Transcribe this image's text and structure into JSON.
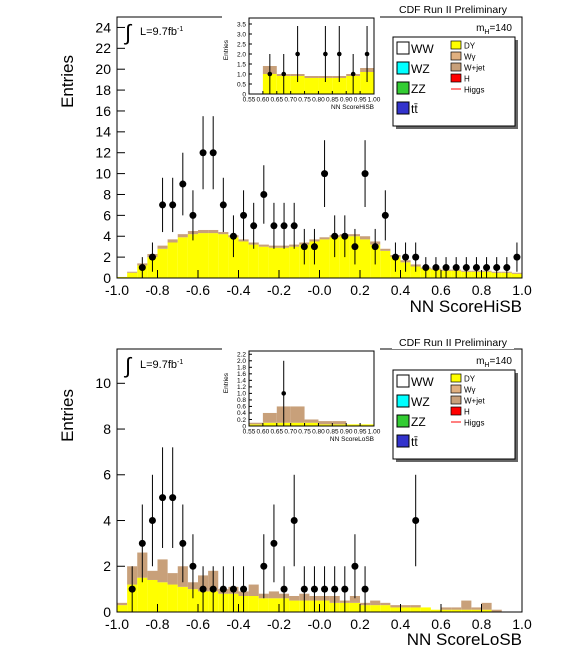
{
  "chart_data": [
    {
      "type": "histogram",
      "title": "CDF Run II Preliminary",
      "x_label": "NN ScoreHiSB",
      "y_label": "Entries",
      "integral": "∫",
      "lumi": {
        "text": "L=9.7fb",
        "superscript": "-1"
      },
      "mass_label": {
        "symbol": "m",
        "subscript": "H",
        "value": "=140"
      },
      "xlim": [
        -1,
        1
      ],
      "ylim": [
        0,
        25
      ],
      "xticks": [
        {
          "value": -1,
          "label": "-1.0"
        },
        -0.8,
        -0.6,
        -0.4,
        -0.2,
        {
          "value": 0,
          "label": "-0.0"
        },
        0.2,
        0.4,
        0.6,
        0.8,
        {
          "value": 1,
          "label": "1.0"
        }
      ],
      "yticks": [
        0,
        2,
        4,
        6,
        8,
        10,
        12,
        14,
        16,
        18,
        20,
        22,
        24
      ],
      "bins": [
        -1,
        -0.95,
        -0.9,
        -0.85,
        -0.8,
        -0.75,
        -0.7,
        -0.65,
        -0.6,
        -0.55,
        -0.5,
        -0.45,
        -0.4,
        -0.35,
        -0.3,
        -0.25,
        -0.2,
        -0.15,
        -0.1,
        -0.05,
        0,
        0.05,
        0.1,
        0.15,
        0.2,
        0.25,
        0.3,
        0.35,
        0.4,
        0.45,
        0.5,
        0.55,
        0.6,
        0.65,
        0.7,
        0.75,
        0.8,
        0.85,
        0.9,
        0.95,
        1
      ],
      "series": [
        {
          "name": "WW",
          "color": "#ffffff"
        },
        {
          "name": "WZ",
          "color": "#00ffff"
        },
        {
          "name": "ZZ",
          "color": "#33cc33"
        },
        {
          "name": "tt̄",
          "color": "#3333cc"
        },
        {
          "name": "DY",
          "color": "#ffff00",
          "values": [
            0.1,
            0.5,
            1.2,
            2.0,
            2.8,
            3.4,
            3.9,
            4.2,
            4.3,
            4.3,
            4.2,
            3.9,
            3.5,
            3.2,
            3.0,
            2.9,
            2.9,
            3.0,
            3.2,
            3.5,
            3.7,
            3.9,
            4.0,
            4.0,
            3.7,
            3.2,
            2.6,
            2.0,
            1.5,
            1.1,
            0.9,
            0.8,
            0.7,
            0.7,
            0.6,
            0.6,
            0.6,
            0.5,
            0.5,
            0.4
          ]
        },
        {
          "name": "Wγ",
          "color": "#e0b080"
        },
        {
          "name": "W+jet",
          "color": "#c8a07a",
          "values": [
            0,
            0.1,
            0.2,
            0.3,
            0.3,
            0.3,
            0.3,
            0.3,
            0.3,
            0.3,
            0.2,
            0.2,
            0.2,
            0.2,
            0.2,
            0.2,
            0.2,
            0.2,
            0.2,
            0.2,
            0.2,
            0.2,
            0.2,
            0.2,
            0.3,
            0.3,
            0.2,
            0.2,
            0.2,
            0.2,
            0.1,
            0.1,
            0.1,
            0.1,
            0.1,
            0.1,
            0.1,
            0.1,
            0.1,
            0.1
          ]
        },
        {
          "name": "H",
          "color": "#ff0000"
        },
        {
          "name": "Higgs",
          "color": "#ff0000",
          "style": "line"
        }
      ],
      "data": {
        "x": [
          -0.875,
          -0.825,
          -0.775,
          -0.725,
          -0.675,
          -0.625,
          -0.575,
          -0.525,
          -0.475,
          -0.425,
          -0.375,
          -0.325,
          -0.275,
          -0.225,
          -0.175,
          -0.125,
          -0.075,
          -0.025,
          0.025,
          0.075,
          0.125,
          0.175,
          0.225,
          0.275,
          0.325,
          0.375,
          0.425,
          0.475,
          0.525,
          0.575,
          0.625,
          0.675,
          0.725,
          0.775,
          0.825,
          0.875,
          0.925,
          0.975
        ],
        "values": [
          1,
          2,
          7,
          7,
          9,
          6,
          12,
          12,
          7,
          4,
          6,
          5,
          8,
          5,
          5,
          5,
          3,
          3,
          10,
          4,
          4,
          3,
          10,
          3,
          6,
          2,
          2,
          2,
          1,
          1,
          1,
          1,
          1,
          1,
          1,
          1,
          1,
          2
        ],
        "errors": [
          1,
          1.4,
          2.6,
          2.6,
          3,
          2.4,
          3.5,
          3.5,
          2.6,
          2,
          2.4,
          2.2,
          2.8,
          2.2,
          2.2,
          2.2,
          1.7,
          1.7,
          3.2,
          2,
          2,
          1.7,
          3.2,
          1.7,
          2.4,
          1.4,
          1.4,
          1.4,
          1,
          1,
          1,
          1,
          1,
          1,
          1,
          1,
          1,
          1.4
        ]
      },
      "inset": {
        "x_label": "NN ScoreHiSB",
        "y_label": "Entries",
        "xlim": [
          0.55,
          1
        ],
        "ylim": [
          0,
          3.8
        ],
        "xticks": [
          0.55,
          {
            "value": 0.6,
            "label": "0.60"
          },
          0.65,
          {
            "value": 0.7,
            "label": "0.70"
          },
          0.75,
          {
            "value": 0.8,
            "label": "0.80"
          },
          0.85,
          {
            "value": 0.9,
            "label": "0.90"
          },
          0.95,
          {
            "value": 1,
            "label": "1.00"
          }
        ],
        "yticks": [
          0,
          0.5,
          {
            "value": 1,
            "label": "1.0"
          },
          1.5,
          {
            "value": 2,
            "label": "2.0"
          },
          2.5,
          {
            "value": 3,
            "label": "3.0"
          },
          3.5
        ],
        "bins": [
          0.55,
          0.6,
          0.65,
          0.7,
          0.75,
          0.8,
          0.85,
          0.9,
          0.95,
          1
        ],
        "series": [
          {
            "color": "#ffff00",
            "values": [
              0,
              1.0,
              0.9,
              0.9,
              0.8,
              0.8,
              0.8,
              0.9,
              1.1
            ]
          },
          {
            "color": "#c8a07a",
            "values": [
              0,
              0.4,
              0.1,
              0.1,
              0.1,
              0.1,
              0.1,
              0.1,
              0.2
            ]
          }
        ],
        "data": {
          "x": [
            0.625,
            0.675,
            0.725,
            0.825,
            0.875,
            0.925,
            0.975
          ],
          "values": [
            1,
            1,
            2,
            2,
            2,
            1,
            2
          ],
          "errors": [
            1,
            1,
            1.4,
            1.4,
            1.4,
            1,
            1.4
          ]
        }
      }
    },
    {
      "type": "histogram",
      "title": "CDF Run II Preliminary",
      "x_label": "NN ScoreLoSB",
      "y_label": "Entries",
      "integral": "∫",
      "lumi": {
        "text": "L=9.7fb",
        "superscript": "-1"
      },
      "mass_label": {
        "symbol": "m",
        "subscript": "H",
        "value": "=140"
      },
      "xlim": [
        -1,
        1
      ],
      "ylim": [
        0,
        11.5
      ],
      "xticks": [
        {
          "value": -1,
          "label": "-1.0"
        },
        -0.8,
        -0.6,
        -0.4,
        -0.2,
        {
          "value": 0,
          "label": "-0.0"
        },
        0.2,
        0.4,
        0.6,
        0.8,
        {
          "value": 1,
          "label": "1.0"
        }
      ],
      "yticks": [
        0,
        2,
        4,
        6,
        8,
        10
      ],
      "bins": [
        -1,
        -0.95,
        -0.9,
        -0.85,
        -0.8,
        -0.75,
        -0.7,
        -0.65,
        -0.6,
        -0.55,
        -0.5,
        -0.45,
        -0.4,
        -0.35,
        -0.3,
        -0.25,
        -0.2,
        -0.15,
        -0.1,
        -0.05,
        0,
        0.05,
        0.1,
        0.15,
        0.2,
        0.25,
        0.3,
        0.35,
        0.4,
        0.45,
        0.5,
        0.55,
        0.6,
        0.65,
        0.7,
        0.75,
        0.8,
        0.85,
        0.9,
        0.95,
        1
      ],
      "series": [
        {
          "name": "WW",
          "color": "#ffffff"
        },
        {
          "name": "WZ",
          "color": "#00ffff"
        },
        {
          "name": "ZZ",
          "color": "#33cc33"
        },
        {
          "name": "tt̄",
          "color": "#3333cc"
        },
        {
          "name": "DY",
          "color": "#ffff00",
          "values": [
            0.3,
            1.2,
            1.5,
            1.4,
            1.3,
            1.2,
            1.1,
            1.0,
            0.9,
            0.9,
            0.8,
            0.8,
            0.7,
            0.7,
            0.6,
            0.6,
            0.6,
            0.5,
            0.5,
            0.5,
            0.5,
            0.4,
            0.4,
            0.4,
            0.3,
            0.3,
            0.3,
            0.2,
            0.2,
            0.2,
            0.2,
            0.1,
            0.1,
            0.1,
            0.1,
            0.1,
            0.1,
            0,
            0,
            0
          ]
        },
        {
          "name": "Wγ",
          "color": "#e0b080"
        },
        {
          "name": "W+jet",
          "color": "#c8a07a",
          "values": [
            0.1,
            0.8,
            1.1,
            0.4,
            1.0,
            0.5,
            0.9,
            0.3,
            0.7,
            0.9,
            0.2,
            0.3,
            0.2,
            0.5,
            0.2,
            0.3,
            0.2,
            0.2,
            0.3,
            0.2,
            0.2,
            0.3,
            0.1,
            0.3,
            0.1,
            0.2,
            0.1,
            0.1,
            0.1,
            0.1,
            0,
            0,
            0.1,
            0.1,
            0.4,
            0.1,
            0.3,
            0.1,
            0,
            0
          ]
        },
        {
          "name": "H",
          "color": "#ff0000"
        },
        {
          "name": "Higgs",
          "color": "#ff0000",
          "style": "line"
        }
      ],
      "data": {
        "x": [
          -0.925,
          -0.875,
          -0.825,
          -0.775,
          -0.725,
          -0.675,
          -0.625,
          -0.575,
          -0.525,
          -0.475,
          -0.425,
          -0.375,
          -0.275,
          -0.225,
          -0.175,
          -0.125,
          -0.075,
          -0.025,
          0.025,
          0.075,
          0.125,
          0.175,
          0.225,
          0.475
        ],
        "values": [
          1,
          3,
          4,
          5,
          5,
          3,
          2,
          1,
          1,
          1,
          1,
          1,
          2,
          3,
          1,
          4,
          1,
          1,
          1,
          1,
          1,
          2,
          1,
          4
        ],
        "errors": [
          1,
          1.7,
          2,
          2.2,
          2.2,
          1.7,
          1.4,
          1,
          1,
          1,
          1,
          1,
          1.4,
          1.7,
          1,
          2,
          1,
          1,
          1,
          1,
          1,
          1.4,
          1,
          2
        ]
      },
      "inset": {
        "x_label": "NN ScoreLoSB",
        "y_label": "Entries",
        "xlim": [
          0.55,
          1
        ],
        "ylim": [
          0,
          2.3
        ],
        "xticks": [
          0.55,
          {
            "value": 0.6,
            "label": "0.60"
          },
          0.65,
          {
            "value": 0.7,
            "label": "0.70"
          },
          0.75,
          {
            "value": 0.8,
            "label": "0.80"
          },
          0.85,
          {
            "value": 0.9,
            "label": "0.90"
          },
          0.95,
          {
            "value": 1,
            "label": "1.00"
          }
        ],
        "yticks": [
          0,
          0.2,
          0.4,
          0.6,
          0.8,
          {
            "value": 1,
            "label": "1.0"
          },
          1.2,
          1.4,
          1.6,
          1.8,
          {
            "value": 2,
            "label": "2.0"
          },
          2.2
        ],
        "bins": [
          0.55,
          0.6,
          0.65,
          0.7,
          0.75,
          0.8,
          0.85,
          0.9,
          0.95,
          1
        ],
        "series": [
          {
            "color": "#ffff00",
            "values": [
              0.05,
              0.1,
              0.1,
              0.1,
              0.1,
              0.05,
              0.05,
              0.05,
              0.05
            ]
          },
          {
            "color": "#c8a07a",
            "values": [
              0.05,
              0.3,
              0.5,
              0.5,
              0.1,
              0.1,
              0.1,
              0,
              0
            ]
          }
        ],
        "data": {
          "x": [
            0.675
          ],
          "values": [
            1
          ],
          "errors": [
            1
          ]
        }
      }
    }
  ]
}
